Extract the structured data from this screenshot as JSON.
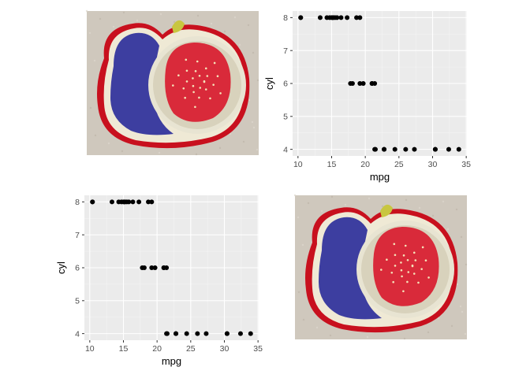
{
  "colors": {
    "panel_bg": "#ebebeb",
    "grid_major": "#ffffff",
    "grid_minor": "#f5f5f5",
    "point": "#000000",
    "tick_label": "#4d4d4d",
    "axis_title": "#000000",
    "felt_bg": "#cfc8bd",
    "fig_skin": "#3d3ea0",
    "fig_flesh": "#d92a3a",
    "fig_rind": "#e8e4d2",
    "felt_border": "#c8101e"
  },
  "images": [
    {
      "name": "embroidered-fig-patch-top-left",
      "subject": "embroidered fig patch"
    },
    {
      "name": "embroidered-fig-patch-bottom-right",
      "subject": "embroidered fig patch"
    }
  ],
  "chart_data": [
    {
      "type": "scatter",
      "xlabel": "mpg",
      "ylabel": "cyl",
      "xlim": [
        9.2,
        35.1
      ],
      "ylim": [
        3.8,
        8.2
      ],
      "xticks": [
        10,
        15,
        20,
        25,
        30,
        35
      ],
      "yticks": [
        4,
        5,
        6,
        7,
        8
      ],
      "xtick_labels": [
        "10",
        "15",
        "20",
        "25",
        "30",
        "35"
      ],
      "ytick_labels": [
        "4",
        "5",
        "6",
        "7",
        "8"
      ],
      "grid": true,
      "legend": "none",
      "points": [
        {
          "x": 21.0,
          "y": 6
        },
        {
          "x": 21.0,
          "y": 6
        },
        {
          "x": 22.8,
          "y": 4
        },
        {
          "x": 21.4,
          "y": 6
        },
        {
          "x": 18.7,
          "y": 8
        },
        {
          "x": 18.1,
          "y": 6
        },
        {
          "x": 14.3,
          "y": 8
        },
        {
          "x": 24.4,
          "y": 4
        },
        {
          "x": 22.8,
          "y": 4
        },
        {
          "x": 19.2,
          "y": 6
        },
        {
          "x": 17.8,
          "y": 6
        },
        {
          "x": 16.4,
          "y": 8
        },
        {
          "x": 17.3,
          "y": 8
        },
        {
          "x": 15.2,
          "y": 8
        },
        {
          "x": 10.4,
          "y": 8
        },
        {
          "x": 10.4,
          "y": 8
        },
        {
          "x": 14.7,
          "y": 8
        },
        {
          "x": 32.4,
          "y": 4
        },
        {
          "x": 30.4,
          "y": 4
        },
        {
          "x": 33.9,
          "y": 4
        },
        {
          "x": 21.5,
          "y": 4
        },
        {
          "x": 15.5,
          "y": 8
        },
        {
          "x": 15.2,
          "y": 8
        },
        {
          "x": 13.3,
          "y": 8
        },
        {
          "x": 19.2,
          "y": 8
        },
        {
          "x": 27.3,
          "y": 4
        },
        {
          "x": 26.0,
          "y": 4
        },
        {
          "x": 30.4,
          "y": 4
        },
        {
          "x": 15.8,
          "y": 8
        },
        {
          "x": 19.7,
          "y": 6
        },
        {
          "x": 15.0,
          "y": 8
        },
        {
          "x": 21.4,
          "y": 4
        }
      ]
    },
    {
      "type": "scatter",
      "xlabel": "mpg",
      "ylabel": "cyl",
      "xlim": [
        9.2,
        35.1
      ],
      "ylim": [
        3.8,
        8.2
      ],
      "xticks": [
        10,
        15,
        20,
        25,
        30,
        35
      ],
      "yticks": [
        4,
        5,
        6,
        7,
        8
      ],
      "xtick_labels": [
        "10",
        "15",
        "20",
        "25",
        "30",
        "35"
      ],
      "ytick_labels": [
        "4",
        "5",
        "6",
        "7",
        "8"
      ],
      "grid": true,
      "legend": "none",
      "points": [
        {
          "x": 21.0,
          "y": 6
        },
        {
          "x": 21.0,
          "y": 6
        },
        {
          "x": 22.8,
          "y": 4
        },
        {
          "x": 21.4,
          "y": 6
        },
        {
          "x": 18.7,
          "y": 8
        },
        {
          "x": 18.1,
          "y": 6
        },
        {
          "x": 14.3,
          "y": 8
        },
        {
          "x": 24.4,
          "y": 4
        },
        {
          "x": 22.8,
          "y": 4
        },
        {
          "x": 19.2,
          "y": 6
        },
        {
          "x": 17.8,
          "y": 6
        },
        {
          "x": 16.4,
          "y": 8
        },
        {
          "x": 17.3,
          "y": 8
        },
        {
          "x": 15.2,
          "y": 8
        },
        {
          "x": 10.4,
          "y": 8
        },
        {
          "x": 10.4,
          "y": 8
        },
        {
          "x": 14.7,
          "y": 8
        },
        {
          "x": 32.4,
          "y": 4
        },
        {
          "x": 30.4,
          "y": 4
        },
        {
          "x": 33.9,
          "y": 4
        },
        {
          "x": 21.5,
          "y": 4
        },
        {
          "x": 15.5,
          "y": 8
        },
        {
          "x": 15.2,
          "y": 8
        },
        {
          "x": 13.3,
          "y": 8
        },
        {
          "x": 19.2,
          "y": 8
        },
        {
          "x": 27.3,
          "y": 4
        },
        {
          "x": 26.0,
          "y": 4
        },
        {
          "x": 30.4,
          "y": 4
        },
        {
          "x": 15.8,
          "y": 8
        },
        {
          "x": 19.7,
          "y": 6
        },
        {
          "x": 15.0,
          "y": 8
        },
        {
          "x": 21.4,
          "y": 4
        }
      ]
    }
  ]
}
